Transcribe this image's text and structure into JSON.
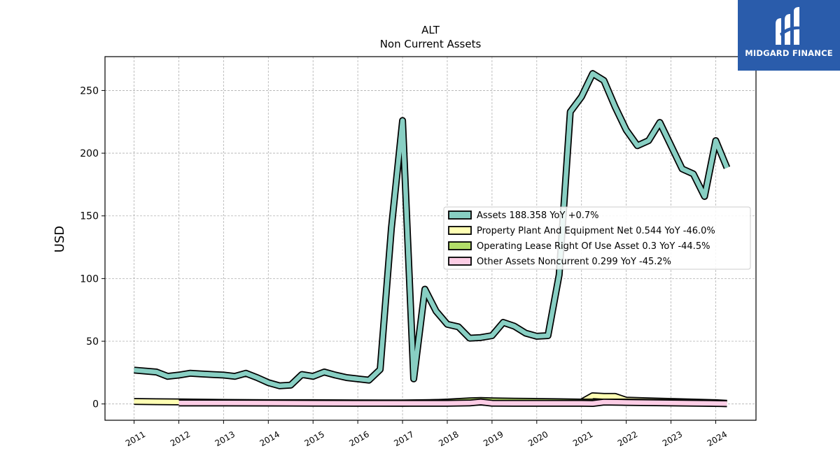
{
  "logo": {
    "text": "MIDGARD FINANCE",
    "color": "#2a5cab"
  },
  "chart_data": {
    "type": "area",
    "title": "ALT",
    "subtitle": "Non Current  Assets",
    "xlabel": "",
    "ylabel": "USD",
    "ylim": [
      -13,
      277
    ],
    "xlim": [
      2010.35,
      2024.9
    ],
    "yticks": [
      0,
      50,
      100,
      150,
      200,
      250
    ],
    "xticks": [
      "2011",
      "2012",
      "2013",
      "2014",
      "2015",
      "2016",
      "2017",
      "2018",
      "2019",
      "2020",
      "2021",
      "2022",
      "2023",
      "2024"
    ],
    "grid": true,
    "legend_position": "center-right",
    "series": [
      {
        "name": "Assets",
        "legend_label": "Assets  188.358 YoY +0.7%",
        "color": "#88cfc3",
        "points": [
          [
            2011.0,
            27
          ],
          [
            2011.5,
            25.5
          ],
          [
            2011.75,
            22
          ],
          [
            2012.0,
            23
          ],
          [
            2012.25,
            24.5
          ],
          [
            2012.5,
            24
          ],
          [
            2012.75,
            23.5
          ],
          [
            2013.0,
            23
          ],
          [
            2013.25,
            22
          ],
          [
            2013.5,
            24.5
          ],
          [
            2013.75,
            21
          ],
          [
            2014.0,
            17
          ],
          [
            2014.25,
            14.5
          ],
          [
            2014.5,
            15
          ],
          [
            2014.75,
            23.5
          ],
          [
            2015.0,
            22
          ],
          [
            2015.25,
            25.5
          ],
          [
            2015.5,
            23
          ],
          [
            2015.75,
            21
          ],
          [
            2016.0,
            20
          ],
          [
            2016.25,
            19
          ],
          [
            2016.5,
            27.5
          ],
          [
            2016.75,
            140
          ],
          [
            2017.0,
            226
          ],
          [
            2017.25,
            20
          ],
          [
            2017.5,
            91.5
          ],
          [
            2017.75,
            74
          ],
          [
            2018.0,
            63.5
          ],
          [
            2018.25,
            61.5
          ],
          [
            2018.5,
            52.5
          ],
          [
            2018.75,
            53
          ],
          [
            2019.0,
            54.5
          ],
          [
            2019.25,
            65
          ],
          [
            2019.5,
            62
          ],
          [
            2019.75,
            56.5
          ],
          [
            2020.0,
            54
          ],
          [
            2020.25,
            54.5
          ],
          [
            2020.5,
            103
          ],
          [
            2020.75,
            233
          ],
          [
            2021.0,
            245
          ],
          [
            2021.25,
            263.5
          ],
          [
            2021.5,
            258
          ],
          [
            2021.75,
            237
          ],
          [
            2022.0,
            218.5
          ],
          [
            2022.25,
            206
          ],
          [
            2022.5,
            210
          ],
          [
            2022.75,
            224.5
          ],
          [
            2023.0,
            206
          ],
          [
            2023.25,
            187.5
          ],
          [
            2023.5,
            183.5
          ],
          [
            2023.75,
            165.5
          ],
          [
            2024.0,
            210
          ],
          [
            2024.25,
            188.4
          ]
        ]
      },
      {
        "name": "Property Plant And Equipment Net",
        "legend_label": "Property Plant And Equipment Net  0.544 YoY -46.0%",
        "color": "#ffffb3",
        "points": [
          [
            2011.0,
            2
          ],
          [
            2011.5,
            1.8
          ],
          [
            2012.0,
            1.6
          ],
          [
            2013.0,
            1.2
          ],
          [
            2014.0,
            1
          ],
          [
            2015.0,
            1
          ],
          [
            2016.0,
            0.8
          ],
          [
            2017.0,
            0.8
          ],
          [
            2018.0,
            1.2
          ],
          [
            2018.75,
            1.5
          ],
          [
            2019.0,
            1
          ],
          [
            2020.0,
            1
          ],
          [
            2020.75,
            1.2
          ],
          [
            2021.0,
            1.5
          ],
          [
            2021.25,
            6.5
          ],
          [
            2021.5,
            6
          ],
          [
            2021.75,
            6
          ],
          [
            2022.0,
            3
          ],
          [
            2022.5,
            2.5
          ],
          [
            2023.0,
            2
          ],
          [
            2023.5,
            1.5
          ],
          [
            2024.0,
            1
          ],
          [
            2024.25,
            0.544
          ]
        ]
      },
      {
        "name": "Operating Lease Right Of Use Asset",
        "legend_label": "Operating Lease Right Of Use Asset  0.3 YoY -44.5%",
        "color": "#b3de69",
        "points": [
          [
            2012.0,
            0.9
          ],
          [
            2013.0,
            0.9
          ],
          [
            2014.0,
            0.8
          ],
          [
            2015.0,
            0.8
          ],
          [
            2016.0,
            0.7
          ],
          [
            2017.0,
            0.6
          ],
          [
            2017.5,
            0.8
          ],
          [
            2018.0,
            1.5
          ],
          [
            2018.5,
            2.5
          ],
          [
            2018.75,
            2.8
          ],
          [
            2019.0,
            2.5
          ],
          [
            2019.5,
            2.2
          ],
          [
            2020.0,
            2
          ],
          [
            2020.5,
            1.8
          ],
          [
            2021.0,
            1.5
          ],
          [
            2021.5,
            1.5
          ],
          [
            2022.0,
            1.5
          ],
          [
            2022.5,
            1.3
          ],
          [
            2023.0,
            1
          ],
          [
            2023.5,
            0.8
          ],
          [
            2024.0,
            0.5
          ],
          [
            2024.25,
            0.3
          ]
        ]
      },
      {
        "name": "Other Assets Noncurrent",
        "legend_label": "Other Assets Noncurrent  0.299 YoY -45.2%",
        "color": "#fccde5",
        "points": [
          [
            2012.0,
            0.8
          ],
          [
            2013.0,
            0.8
          ],
          [
            2014.0,
            0.7
          ],
          [
            2015.0,
            0.6
          ],
          [
            2016.0,
            0.5
          ],
          [
            2017.0,
            0.5
          ],
          [
            2018.0,
            0.5
          ],
          [
            2018.5,
            0.8
          ],
          [
            2018.75,
            1.6
          ],
          [
            2019.0,
            0.6
          ],
          [
            2019.5,
            0.5
          ],
          [
            2020.0,
            0.5
          ],
          [
            2020.5,
            0.5
          ],
          [
            2021.0,
            0.5
          ],
          [
            2021.25,
            0.4
          ],
          [
            2021.5,
            1.5
          ],
          [
            2022.0,
            1.2
          ],
          [
            2022.5,
            1
          ],
          [
            2023.0,
            0.8
          ],
          [
            2023.5,
            0.6
          ],
          [
            2024.0,
            0.4
          ],
          [
            2024.25,
            0.299
          ]
        ]
      }
    ]
  }
}
